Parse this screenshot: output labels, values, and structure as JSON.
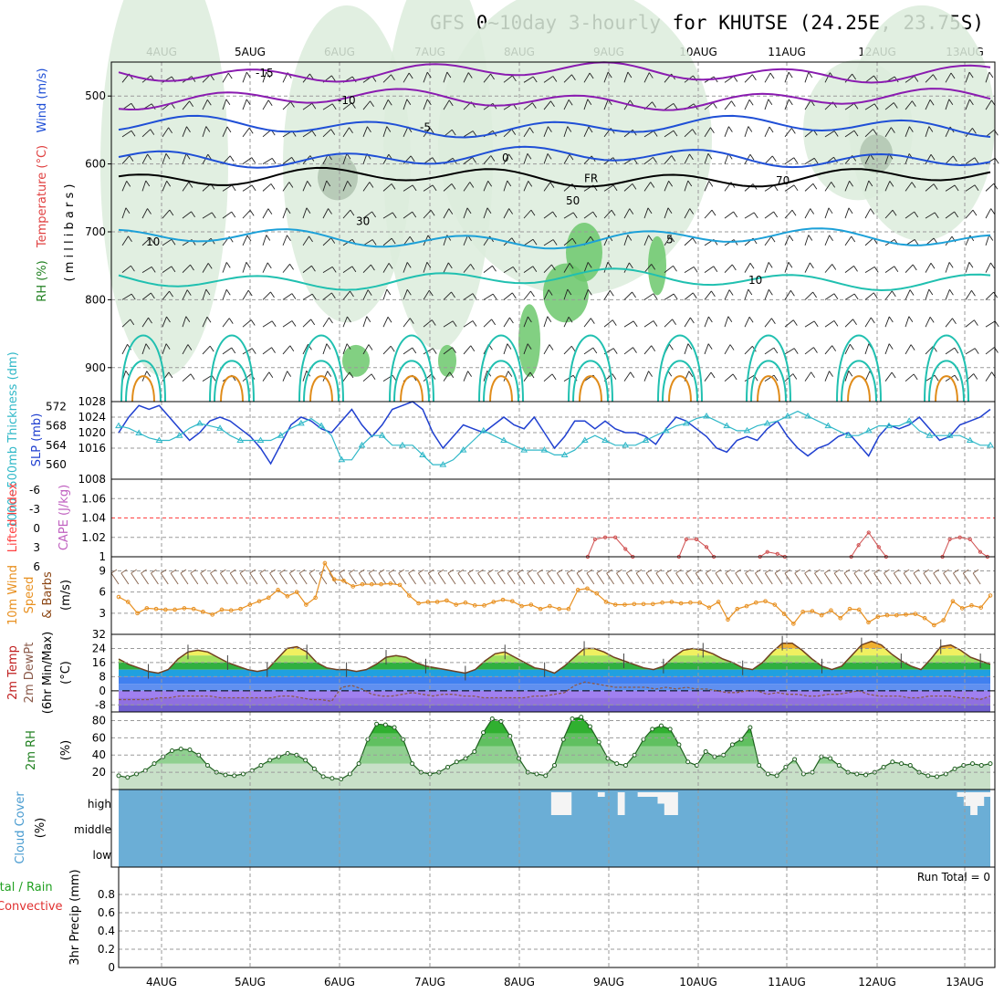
{
  "title": "GFS 0~10day 3-hourly for KHUTSE (24.25E, 23.75S)",
  "dates": [
    "4AUG",
    "5AUG",
    "6AUG",
    "7AUG",
    "8AUG",
    "9AUG",
    "10AUG",
    "11AUG",
    "12AUG",
    "13AUG"
  ],
  "colors": {
    "temp_purple": "#8a1cb0",
    "temp_blue": "#1f4fd6",
    "temp_lblue": "#1ca0d8",
    "temp_cyan": "#20c0b0",
    "temp_orange": "#e08c1a",
    "freezing": "#000000",
    "rh_light": "#dcecdc",
    "rh_mid": "#6cc86c",
    "rh_dark": "#b0c4b0",
    "slp": "#2040d0",
    "thickness": "#30b8c8",
    "lifted": "#ff4040",
    "cape": "#d05050",
    "wind": "#e89020",
    "barb": "#8b6a55",
    "temp_fill_top": "#d06010",
    "cloud": "#6baed6",
    "cloud_gap": "#f4f4f4",
    "dewpt": "#8b5a4a"
  },
  "chart_data": [
    {
      "id": "upper-air",
      "type": "contour",
      "ylabel_parts": [
        "Wind (m/s)",
        "Temperature (°C)",
        "RH (%)",
        "( m i l l i b a r s )"
      ],
      "yticks": [
        "500",
        "600",
        "700",
        "800",
        "900"
      ],
      "ylim": [
        450,
        950
      ],
      "temperature_contours": [
        {
          "label": "-15",
          "level": -15,
          "mean_mb": 465
        },
        {
          "label": "-10",
          "level": -10,
          "mean_mb": 505
        },
        {
          "label": "-5",
          "level": -5,
          "mean_mb": 545
        },
        {
          "label": "0",
          "level": 0,
          "mean_mb": 590
        },
        {
          "label": "FR",
          "level": 0,
          "mean_mb": 620
        },
        {
          "label": "5",
          "level": 5,
          "mean_mb": 710
        },
        {
          "label": "10",
          "level": 10,
          "mean_mb": 770
        }
      ],
      "rh_contour_labels": [
        "10",
        "30",
        "50",
        "70"
      ]
    },
    {
      "id": "slp-thickness",
      "type": "line",
      "ylabel_left": "1000~500mb Thickness (dm)",
      "ylabel_right": "SLP (mb)",
      "left_ticks": [
        "572",
        "568",
        "564",
        "560"
      ],
      "right_ticks": [
        "1028",
        "1024",
        "1020",
        "1016",
        "1008"
      ],
      "slp_ylim": [
        1008,
        1028
      ],
      "thick_ylim": [
        557,
        573
      ],
      "series": [
        {
          "name": "SLP (mb)",
          "axis": "right",
          "values": [
            1020,
            1024,
            1027,
            1026,
            1027,
            1024,
            1021,
            1018,
            1020,
            1023,
            1024,
            1023,
            1021,
            1019,
            1016,
            1012,
            1017,
            1022,
            1024,
            1023,
            1021,
            1020,
            1023,
            1026,
            1022,
            1019,
            1022,
            1026,
            1027,
            1028,
            1026,
            1020,
            1016,
            1019,
            1022,
            1021,
            1020,
            1022,
            1024,
            1022,
            1021,
            1024,
            1020,
            1016,
            1019,
            1023,
            1023,
            1021,
            1023,
            1021,
            1020,
            1020,
            1019,
            1017,
            1021,
            1024,
            1023,
            1021,
            1019,
            1016,
            1015,
            1018,
            1019,
            1018,
            1021,
            1023,
            1019,
            1016,
            1014,
            1016,
            1017,
            1019,
            1020,
            1017,
            1014,
            1019,
            1022,
            1021,
            1022,
            1024,
            1021,
            1018,
            1019,
            1022,
            1023,
            1024,
            1026
          ]
        },
        {
          "name": "1000-500mb Thickness (dm)",
          "axis": "left",
          "values": [
            568,
            567.5,
            566.5,
            565.5,
            565,
            565,
            566,
            567.5,
            568.5,
            568,
            567.5,
            566,
            565,
            565,
            565,
            565,
            566,
            567.5,
            568.5,
            569.5,
            568,
            566,
            561,
            561,
            564,
            566,
            566,
            564,
            564,
            564,
            562,
            560,
            560,
            561,
            563,
            565,
            567,
            566,
            565,
            564,
            563,
            563,
            563,
            562,
            562,
            563,
            565,
            566,
            565,
            564,
            564,
            564,
            565,
            566,
            567,
            568,
            568.5,
            569.5,
            570,
            569,
            568,
            567,
            567,
            568,
            568.5,
            569,
            570,
            571,
            570,
            569,
            568,
            567,
            566,
            566,
            567,
            568,
            568,
            568,
            569,
            567,
            566,
            566,
            566,
            566,
            565,
            564,
            564
          ]
        }
      ]
    },
    {
      "id": "stability",
      "type": "line",
      "ylabel_left": "Lifted Index",
      "ylabel_right": "CAPE (J/kg)",
      "left_ticks": [
        "-6",
        "-3",
        "0",
        "3",
        "6"
      ],
      "right_ticks": [
        "1.06",
        "1.04",
        "1.02",
        "1"
      ],
      "cape_ylim": [
        1,
        1.08
      ],
      "series": [
        {
          "name": "CAPE (J/kg)",
          "axis": "right",
          "values": [
            1,
            1,
            1,
            1,
            1,
            1,
            1,
            1,
            1,
            1,
            1,
            1,
            1,
            1,
            1,
            1,
            1,
            1,
            1,
            1,
            1,
            1,
            1,
            1,
            1,
            1,
            1,
            1,
            1,
            1,
            1,
            1,
            1,
            1,
            1,
            1,
            1,
            1,
            1,
            1,
            1,
            1,
            1,
            1,
            1,
            1,
            1,
            1.018,
            1.02,
            1.02,
            1.008,
            1,
            1,
            1,
            1,
            1,
            1.018,
            1.018,
            1.01,
            1,
            1,
            1,
            1,
            1,
            1.005,
            1.003,
            1,
            1,
            1,
            1,
            1,
            1,
            1,
            1.012,
            1.025,
            1.01,
            1,
            1,
            1,
            1,
            1,
            1,
            1.018,
            1.02,
            1.018,
            1.005,
            1
          ]
        }
      ]
    },
    {
      "id": "wind10m",
      "type": "line",
      "ylabel_parts": [
        "10m Wind",
        "Speed",
        "& Barbs",
        "(m/s)"
      ],
      "yticks": [
        "9",
        "6",
        "3"
      ],
      "ylim": [
        0,
        11
      ],
      "series": [
        {
          "name": "10m Wind Speed (m/s)",
          "values": [
            5.3,
            4.6,
            3,
            3.7,
            3.6,
            3.5,
            3.5,
            3.7,
            3.6,
            3.2,
            2.8,
            3.5,
            3.4,
            3.6,
            4.2,
            4.7,
            5.2,
            6.3,
            5.4,
            6,
            4.2,
            5.2,
            10.1,
            7.8,
            7.6,
            6.8,
            7.1,
            7.1,
            7.1,
            7.2,
            7,
            5.5,
            4.4,
            4.6,
            4.6,
            4.8,
            4.2,
            4.5,
            4.1,
            4.1,
            4.6,
            4.9,
            4.7,
            4,
            4.2,
            3.6,
            4,
            3.6,
            3.6,
            6.3,
            6.5,
            5.8,
            4.6,
            4.2,
            4.2,
            4.3,
            4.3,
            4.3,
            4.5,
            4.6,
            4.4,
            4.5,
            4.5,
            3.8,
            4.6,
            2.1,
            3.6,
            4,
            4.5,
            4.7,
            4.2,
            2.9,
            1.5,
            3.2,
            3.3,
            2.7,
            3.4,
            2.3,
            3.6,
            3.5,
            1.7,
            2.5,
            2.7,
            2.7,
            2.8,
            2.9,
            2.3,
            1.3,
            2,
            4.7,
            3.7,
            4.1,
            3.8,
            5.5
          ]
        }
      ]
    },
    {
      "id": "temp2m",
      "type": "area",
      "ylabel_parts": [
        "2m Temp",
        "2m DewPt",
        "(6hr Min/Max)",
        "(°C)"
      ],
      "yticks": [
        "32",
        "24",
        "16",
        "8",
        "0",
        "-8"
      ],
      "ylim": [
        -12,
        32
      ],
      "series": [
        {
          "name": "2m Temp (°C)",
          "values": [
            18,
            15,
            13,
            11,
            10,
            12,
            18,
            22,
            23,
            22,
            19,
            16,
            14,
            12,
            11,
            12,
            18,
            24,
            25,
            22,
            16,
            13,
            12,
            12,
            11,
            12,
            15,
            19,
            20,
            19,
            16,
            14,
            13,
            12,
            11,
            10,
            12,
            17,
            21,
            22,
            19,
            16,
            13,
            12,
            10,
            14,
            19,
            24,
            24,
            22,
            19,
            17,
            15,
            13,
            12,
            14,
            19,
            23,
            24,
            23,
            21,
            18,
            16,
            13,
            12,
            16,
            22,
            27,
            27,
            23,
            18,
            14,
            12,
            14,
            20,
            26,
            28,
            26,
            21,
            17,
            14,
            12,
            18,
            25,
            26,
            23,
            19,
            17,
            15
          ]
        },
        {
          "name": "2m DewPt (°C)",
          "values": [
            -5,
            -5,
            -5,
            -5,
            -4,
            -4,
            -3,
            -3,
            -3,
            -3,
            -4,
            -4,
            -4,
            -4,
            -4,
            -4,
            -3,
            -3,
            -4,
            -5,
            -5,
            -6,
            2,
            3,
            1,
            -2,
            -3,
            -3,
            -2,
            -1,
            -2,
            -3,
            -2,
            -2,
            -3,
            -3,
            -4,
            -4,
            -4,
            -4,
            -4,
            -3,
            -3,
            -2,
            -1,
            3,
            5,
            4,
            3,
            2,
            2,
            2,
            2,
            1,
            2,
            1,
            2,
            1,
            1,
            0,
            -1,
            -1,
            0,
            0,
            -2,
            -1,
            -2,
            -2,
            -3,
            -3,
            -2,
            -2,
            -1,
            0,
            -2,
            -3,
            -3,
            -3,
            -4,
            -4,
            -3,
            -3,
            -3,
            -4,
            -4,
            -5,
            -3
          ]
        }
      ]
    },
    {
      "id": "rh2m",
      "type": "area",
      "ylabel_parts": [
        "2m RH",
        "(%)"
      ],
      "yticks": [
        "80",
        "60",
        "40",
        "20"
      ],
      "ylim": [
        0,
        90
      ],
      "series": [
        {
          "name": "2m RH (%)",
          "values": [
            16,
            14,
            18,
            22,
            30,
            38,
            45,
            47,
            46,
            40,
            28,
            20,
            17,
            16,
            18,
            22,
            28,
            34,
            38,
            42,
            40,
            34,
            24,
            15,
            13,
            12,
            18,
            30,
            58,
            76,
            75,
            72,
            58,
            30,
            20,
            18,
            20,
            26,
            32,
            36,
            44,
            66,
            82,
            79,
            62,
            36,
            20,
            18,
            16,
            28,
            58,
            82,
            84,
            73,
            55,
            36,
            30,
            28,
            40,
            58,
            70,
            74,
            70,
            52,
            32,
            28,
            44,
            38,
            40,
            52,
            58,
            72,
            28,
            18,
            16,
            26,
            35,
            18,
            20,
            38,
            36,
            28,
            20,
            18,
            17,
            20,
            26,
            32,
            30,
            28,
            20,
            16,
            15,
            18,
            24,
            28,
            30,
            28,
            30
          ]
        }
      ]
    },
    {
      "id": "cloud",
      "type": "bar",
      "ylabel_parts": [
        "Cloud Cover",
        "(%)"
      ],
      "yticks": [
        "high",
        "middle",
        "low"
      ],
      "series": [
        {
          "name": "high cloud gap",
          "values": [
            0,
            0,
            0,
            0,
            0,
            0,
            0,
            0,
            0,
            0,
            0,
            0,
            0,
            0,
            0,
            0,
            0,
            0,
            0,
            0,
            0,
            0,
            0,
            0,
            0,
            0,
            0,
            0,
            0,
            0,
            0,
            0,
            0,
            0,
            0,
            0,
            0,
            0,
            0,
            0,
            0,
            0,
            0,
            0,
            0,
            0,
            0,
            0,
            0,
            0,
            0,
            0,
            0,
            0,
            0,
            0,
            0,
            0,
            0,
            0,
            0,
            0,
            0,
            0,
            0,
            1,
            1,
            1,
            0,
            0,
            0,
            0,
            0.2,
            0,
            0,
            1,
            0,
            0,
            0.2,
            0.2,
            0.2,
            0.5,
            1,
            1,
            0,
            0,
            0,
            0,
            0,
            0,
            0,
            0,
            0,
            0,
            0,
            0,
            0,
            0,
            0,
            0,
            0,
            0,
            0,
            0,
            0,
            0,
            0,
            0,
            0,
            0,
            0,
            0,
            0,
            0,
            0,
            0,
            0,
            0,
            0,
            0,
            0,
            0,
            0,
            0,
            0,
            0,
            0.2,
            0.6,
            1,
            0.6,
            0.2
          ]
        }
      ]
    },
    {
      "id": "precip",
      "type": "bar",
      "ylabel_parts": [
        "Total / Rain",
        "Convective",
        "3hr Precip (mm)"
      ],
      "yticks": [
        "0.8",
        "0.6",
        "0.4",
        "0.2",
        "0"
      ],
      "ylim": [
        0,
        1
      ],
      "run_total": "Run Total = 0",
      "values": []
    }
  ]
}
